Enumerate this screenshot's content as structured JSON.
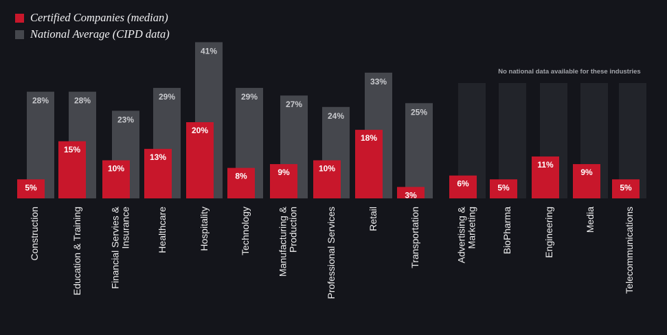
{
  "legend": [
    {
      "label": "Certified Companies (median)",
      "color": "#c8172b"
    },
    {
      "label": "National Average (CIPD data)",
      "color": "#45474d"
    }
  ],
  "no_data_note": "No national data available for these industries",
  "colors": {
    "background": "#14151b",
    "certified": "#c8172b",
    "national": "#45474d",
    "no_data_panel": "#22242a"
  },
  "chart_data": {
    "type": "bar",
    "categories": [
      [
        "Construction"
      ],
      [
        "Education & Training"
      ],
      [
        "Financial Servies &",
        "Insurance"
      ],
      [
        "Healthcare"
      ],
      [
        "Hospitality"
      ],
      [
        "Technology"
      ],
      [
        "Manufacturing &",
        "Production"
      ],
      [
        "Professional Services"
      ],
      [
        "Retail"
      ],
      [
        "Transportation"
      ],
      [
        "Advertising &",
        "Marketing"
      ],
      [
        "BioPharma"
      ],
      [
        "Engineering"
      ],
      [
        "Media"
      ],
      [
        "Telecommunications"
      ]
    ],
    "series": [
      {
        "name": "Certified Companies (median)",
        "values": [
          5,
          15,
          10,
          13,
          20,
          8,
          9,
          10,
          18,
          3,
          6,
          5,
          11,
          9,
          5
        ]
      },
      {
        "name": "National Average (CIPD data)",
        "values": [
          28,
          28,
          23,
          29,
          41,
          29,
          27,
          24,
          33,
          25,
          null,
          null,
          null,
          null,
          null
        ]
      }
    ],
    "value_suffix": "%",
    "ylim": [
      0,
      41
    ],
    "grid": false,
    "legend_position": "top-left"
  }
}
